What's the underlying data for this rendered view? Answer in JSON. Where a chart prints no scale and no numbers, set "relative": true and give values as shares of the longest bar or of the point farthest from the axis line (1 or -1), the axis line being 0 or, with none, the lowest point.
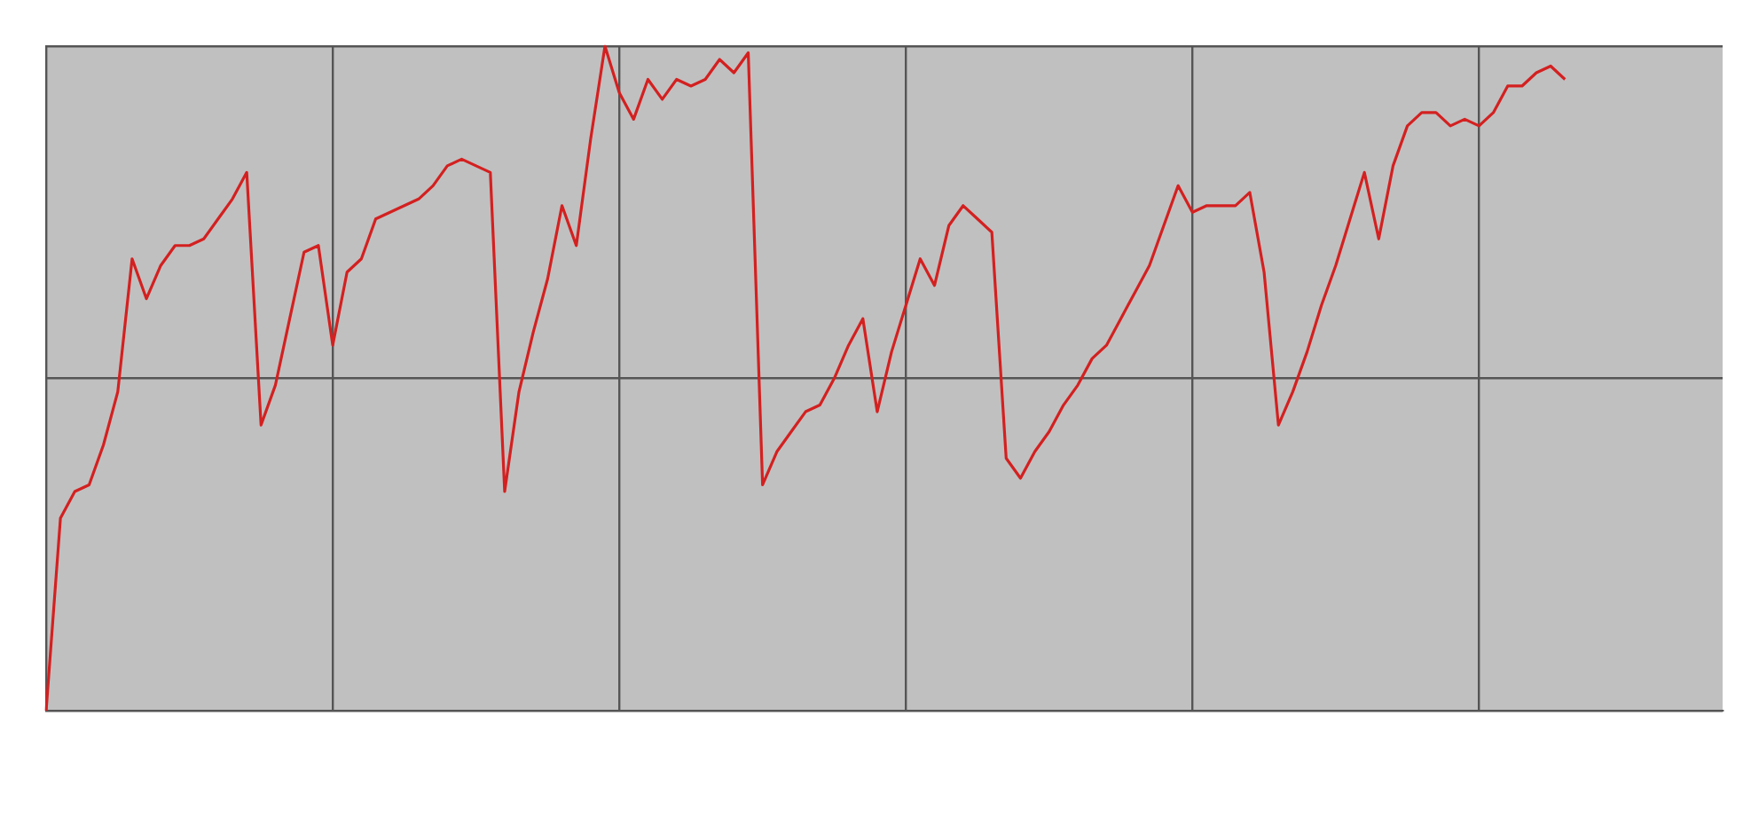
{
  "chart_data": {
    "type": "line",
    "relative": true,
    "grid": true,
    "marker": "none",
    "line_style": "solid",
    "categories": [
      null,
      null,
      null,
      null,
      null,
      null,
      null,
      null,
      null,
      null,
      null,
      null,
      null,
      null,
      null,
      null,
      null,
      null,
      null,
      null,
      null,
      null,
      null,
      null,
      null,
      null,
      null,
      null,
      null,
      null,
      null,
      null,
      null,
      null,
      null,
      null,
      null,
      null,
      null,
      null,
      null,
      null,
      null,
      null,
      null,
      null,
      null,
      null,
      null,
      null,
      null,
      null,
      null,
      null,
      null,
      null,
      null,
      null,
      null,
      null,
      null,
      null,
      null,
      null,
      null,
      null,
      null,
      null,
      null,
      null,
      null,
      null,
      null,
      null,
      null,
      null,
      null,
      null,
      null,
      null,
      null,
      null,
      null,
      null,
      null,
      null,
      null,
      null,
      null,
      null,
      null,
      null,
      null,
      null,
      null,
      null,
      null,
      null,
      null,
      null,
      null,
      null,
      null,
      null,
      null,
      null,
      null,
      null,
      null,
      null,
      null,
      null,
      null,
      null,
      null,
      null,
      null,
      null
    ],
    "series": [
      {
        "color": "#d42020",
        "values": [
          0,
          0.29,
          0.33,
          0.34,
          0.4,
          0.48,
          0.68,
          0.62,
          0.67,
          0.7,
          0.7,
          0.71,
          0.74,
          0.77,
          0.81,
          0.43,
          0.49,
          0.59,
          0.69,
          0.7,
          0.55,
          0.66,
          0.68,
          0.74,
          0.75,
          0.76,
          0.77,
          0.79,
          0.82,
          0.83,
          0.82,
          0.81,
          0.33,
          0.48,
          0.57,
          0.65,
          0.76,
          0.7,
          0.86,
          1,
          0.93,
          0.89,
          0.95,
          0.92,
          0.95,
          0.94,
          0.95,
          0.98,
          0.96,
          0.99,
          0.34,
          0.39,
          0.42,
          0.45,
          0.46,
          0.5,
          0.55,
          0.59,
          0.45,
          0.54,
          0.61,
          0.68,
          0.64,
          0.73,
          0.76,
          0.74,
          0.72,
          0.38,
          0.35,
          0.39,
          0.42,
          0.46,
          0.49,
          0.53,
          0.55,
          0.59,
          0.63,
          0.67,
          0.73,
          0.79,
          0.75,
          0.76,
          0.76,
          0.76,
          0.78,
          0.66,
          0.43,
          0.48,
          0.54,
          0.61,
          0.67,
          0.74,
          0.81,
          0.71,
          0.82,
          0.88,
          0.9,
          0.9,
          0.88,
          0.89,
          0.88,
          0.9,
          0.94,
          0.94,
          0.96,
          0.97,
          0.95,
          null,
          null,
          null,
          null,
          null,
          null,
          null,
          null,
          null,
          null,
          null
        ]
      }
    ]
  }
}
